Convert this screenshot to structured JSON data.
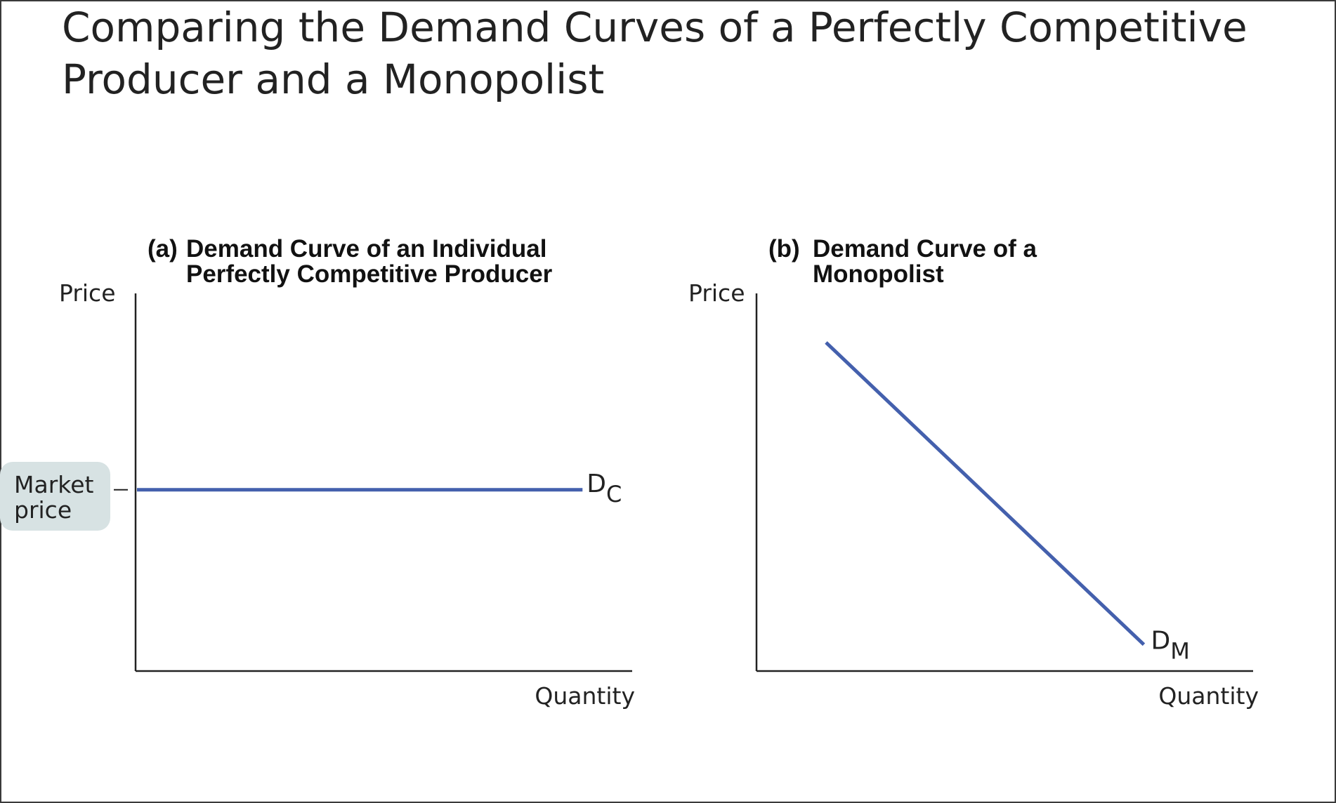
{
  "slide": {
    "title": "Comparing the Demand Curves of a Perfectly Competitive Producer and a Monopolist"
  },
  "colors": {
    "curve": "#4460ad",
    "axis": "#222222",
    "callout_bg": "#d7e2e3",
    "text": "#222222"
  },
  "chart_data": [
    {
      "type": "line",
      "panel_letter": "(a)",
      "title_lines": [
        "Demand Curve of an Individual",
        "Perfectly Competitive Producer"
      ],
      "xlabel": "Quantity",
      "ylabel": "Price",
      "xlim": [
        0,
        10
      ],
      "ylim": [
        0,
        10
      ],
      "y_tick_label_lines": [
        "Market",
        "price"
      ],
      "y_tick_value": 4.8,
      "series": [
        {
          "name": "D",
          "name_sub": "C",
          "x": [
            0,
            9
          ],
          "y": [
            4.8,
            4.8
          ]
        }
      ]
    },
    {
      "type": "line",
      "panel_letter": "(b)",
      "title_lines": [
        "Demand Curve of a",
        "Monopolist"
      ],
      "xlabel": "Quantity",
      "ylabel": "Price",
      "xlim": [
        0,
        10
      ],
      "ylim": [
        0,
        10
      ],
      "series": [
        {
          "name": "D",
          "name_sub": "M",
          "x": [
            1.4,
            7.8
          ],
          "y": [
            8.7,
            0.7
          ]
        }
      ]
    }
  ]
}
